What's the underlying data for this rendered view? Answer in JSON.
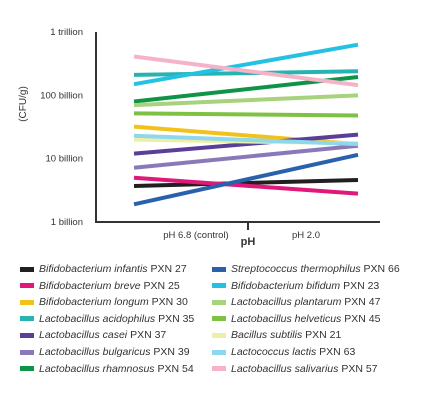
{
  "chart_data": {
    "type": "line",
    "ylabel": "(CFU/g)",
    "xlabel": "pH",
    "y_scale": "log",
    "ylim": [
      1000000000,
      1000000000000
    ],
    "y_ticks": [
      {
        "value": 1000000000,
        "label": "1 billion"
      },
      {
        "value": 10000000000,
        "label": "10 billion"
      },
      {
        "value": 100000000000,
        "label": "100 billion"
      },
      {
        "value": 1000000000000,
        "label": "1 trillion"
      }
    ],
    "categories": [
      "pH 6.8 (control)",
      "pH 2.0"
    ],
    "legend_position": "bottom",
    "grid": false,
    "series": [
      {
        "species": "Bifidobacterium infantis",
        "strain": "PXN 27",
        "color": "#231f20",
        "values": [
          3700000000,
          4600000000
        ]
      },
      {
        "species": "Bifidobacterium breve",
        "strain": "PXN 25",
        "color": "#e0187a",
        "values": [
          5000000000,
          2800000000
        ]
      },
      {
        "species": "Bifidobacterium longum",
        "strain": "PXN 30",
        "color": "#f2c21b",
        "values": [
          32000000000,
          17000000000
        ]
      },
      {
        "species": "Lactobacillus acidophilus",
        "strain": "PXN 35",
        "color": "#27b3b0",
        "values": [
          210000000000,
          240000000000
        ]
      },
      {
        "species": "Lactobacillus casei",
        "strain": "PXN 37",
        "color": "#5a3e98",
        "values": [
          12000000000,
          24000000000
        ]
      },
      {
        "species": "Lactobacillus bulgaricus",
        "strain": "PXN 39",
        "color": "#8a79b9",
        "values": [
          7200000000,
          16000000000
        ]
      },
      {
        "species": "Lactobacillus rhamnosus",
        "strain": "PXN 54",
        "color": "#0f9447",
        "values": [
          80000000000,
          195000000000
        ]
      },
      {
        "species": "Streptococcus thermophilus",
        "strain": "PXN 66",
        "color": "#2a61ad",
        "values": [
          1900000000,
          11500000000
        ]
      },
      {
        "species": "Bifidobacterium bifidum",
        "strain": "PXN 23",
        "color": "#25c1e3",
        "values": [
          150000000000,
          630000000000
        ]
      },
      {
        "species": "Lactobacillus plantarum",
        "strain": "PXN 47",
        "color": "#a8d27d",
        "values": [
          70000000000,
          100000000000
        ]
      },
      {
        "species": "Lactobacillus helveticus",
        "strain": "PXN 45",
        "color": "#7fc144",
        "values": [
          52000000000,
          48000000000
        ]
      },
      {
        "species": "Bacillus subtilis",
        "strain": "PXN 21",
        "color": "#ecf0a6",
        "values": [
          20000000000,
          17500000000
        ]
      },
      {
        "species": "Lactococcus lactis",
        "strain": "PXN 63",
        "color": "#8fd8ec",
        "values": [
          23000000000,
          17000000000
        ]
      },
      {
        "species": "Lactobacillus salivarius",
        "strain": "PXN 57",
        "color": "#f5b3c9",
        "values": [
          410000000000,
          145000000000
        ]
      }
    ]
  }
}
